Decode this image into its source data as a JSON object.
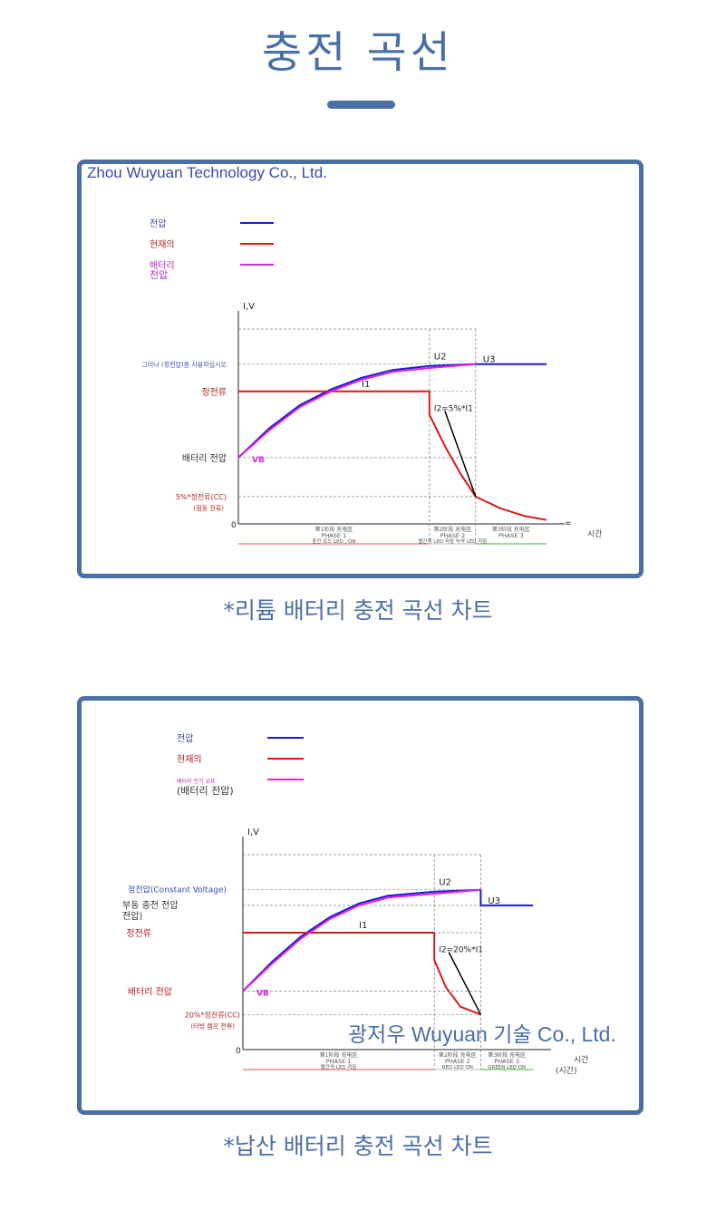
{
  "page": {
    "title": "충전 곡선",
    "accent_color": "#4a6fa5"
  },
  "colors": {
    "voltage": "#1a1ad6",
    "current": "#d61a1a",
    "battery_voltage": "#e020e0",
    "label_blue": "#3a4aa8",
    "label_red": "#b22222",
    "label_magenta": "#b52ab5",
    "guide": "#888888",
    "phase1_box": "#e05050",
    "phase3_box": "#40b040"
  },
  "chart_data": [
    {
      "type": "line",
      "caption": "*리튬 배터리 충전 곡선 차트",
      "watermark": "Zhou Wuyuan Technology Co., Ltd.",
      "legend": [
        {
          "name": "전압",
          "color": "#1a1ad6"
        },
        {
          "name": "현재의",
          "color": "#d61a1a"
        },
        {
          "name": "배터리",
          "name2": "전압",
          "color": "#e020e0"
        }
      ],
      "ylabel": "I,V",
      "xlabel": "시간",
      "origin_label": "0",
      "end_label": "∞",
      "y_labels": {
        "cv": "그러나 (정전압)을 사용하십시오",
        "cc": "정전류",
        "vb": "배터리 전압",
        "term": "5%*정전류(CC)",
        "term2": "(점등 전류)"
      },
      "annotations": {
        "u2": "U2",
        "u3": "U3",
        "i1": "I1",
        "i2": "I2=5%*I1",
        "vb": "VB"
      },
      "phases": [
        {
          "label1": "第1阶段 充电区",
          "label2": "PHASE 1",
          "label3": "충전 모드 LED , ON"
        },
        {
          "label1": "第2阶段 充电区",
          "label2": "PHASE 2",
          "label3": "빨간색 LED 꺼짐 녹색 LED 켜짐"
        },
        {
          "label1": "第3阶段 充电区",
          "label2": "PHASE 3",
          "label3": ""
        }
      ],
      "levels": {
        "cv": 0.82,
        "cc": 0.68,
        "vb": 0.34,
        "term": 0.14
      },
      "phase_bounds": [
        0,
        0.62,
        0.77,
        1.0
      ],
      "series": [
        {
          "name": "전압",
          "x": [
            0,
            0.1,
            0.2,
            0.3,
            0.4,
            0.5,
            0.62,
            0.77,
            1.0
          ],
          "y": [
            0.34,
            0.49,
            0.61,
            0.69,
            0.75,
            0.79,
            0.81,
            0.82,
            0.82
          ]
        },
        {
          "name": "현재의",
          "x": [
            0,
            0.62,
            0.62,
            0.67,
            0.72,
            0.77,
            0.85,
            0.93,
            1.0
          ],
          "y": [
            0.68,
            0.68,
            0.56,
            0.4,
            0.26,
            0.14,
            0.08,
            0.04,
            0.02
          ]
        },
        {
          "name": "배터리 전압",
          "x": [
            0,
            0.1,
            0.2,
            0.3,
            0.4,
            0.5,
            0.62,
            0.77
          ],
          "y": [
            0.34,
            0.48,
            0.6,
            0.68,
            0.74,
            0.78,
            0.8,
            0.82
          ]
        }
      ]
    },
    {
      "type": "line",
      "caption": "*납산 배터리 충전 곡선 차트",
      "watermark": "광저우 Wuyuan 기술 Co., Ltd.",
      "legend": [
        {
          "name": "전압",
          "color": "#1a1ad6"
        },
        {
          "name": "현재의",
          "color": "#d61a1a"
        },
        {
          "name": "배터리 전기 유표",
          "name2": "(배터리 전압)",
          "color": "#e020e0"
        }
      ],
      "ylabel": "I,V",
      "xlabel": "시간",
      "xlabel2": "(시간)",
      "origin_label": "0",
      "y_labels": {
        "cv": "정전압(Constant Voltage)",
        "float": "부동 충전 전압",
        "float2": "전압)",
        "cc": "정전류",
        "vb": "배터리 전압",
        "term": "20%*정전류(CC)",
        "term2": "(터빙 램프 전류)"
      },
      "annotations": {
        "u2": "U2",
        "u3": "U3",
        "i1": "I1",
        "i2": "I2=20%*I1",
        "vb": "VB"
      },
      "phases": [
        {
          "label1": "第1阶段 充电区",
          "label2": "PHASE 1",
          "label3": "빨간색 LED 켜짐"
        },
        {
          "label1": "第2阶段 充电区",
          "label2": "PHASE 2",
          "label3": "RED LED ON"
        },
        {
          "label1": "第3阶段 充电区",
          "label2": "PHASE 3",
          "label3": "GREEN LED ON"
        }
      ],
      "levels": {
        "cv": 0.82,
        "float": 0.74,
        "cc": 0.6,
        "vb": 0.3,
        "term": 0.18
      },
      "phase_bounds": [
        0,
        0.66,
        0.82,
        1.0
      ],
      "series": [
        {
          "name": "전압",
          "x": [
            0,
            0.1,
            0.2,
            0.3,
            0.4,
            0.5,
            0.66,
            0.82,
            0.82,
            1.0
          ],
          "y": [
            0.3,
            0.45,
            0.58,
            0.68,
            0.75,
            0.79,
            0.81,
            0.82,
            0.74,
            0.74
          ]
        },
        {
          "name": "현재의",
          "x": [
            0,
            0.66,
            0.66,
            0.7,
            0.75,
            0.82
          ],
          "y": [
            0.6,
            0.6,
            0.46,
            0.32,
            0.22,
            0.18
          ]
        },
        {
          "name": "배터리 전압",
          "x": [
            0,
            0.1,
            0.2,
            0.3,
            0.4,
            0.5,
            0.66,
            0.82
          ],
          "y": [
            0.3,
            0.44,
            0.57,
            0.67,
            0.74,
            0.78,
            0.8,
            0.82
          ]
        }
      ]
    }
  ]
}
